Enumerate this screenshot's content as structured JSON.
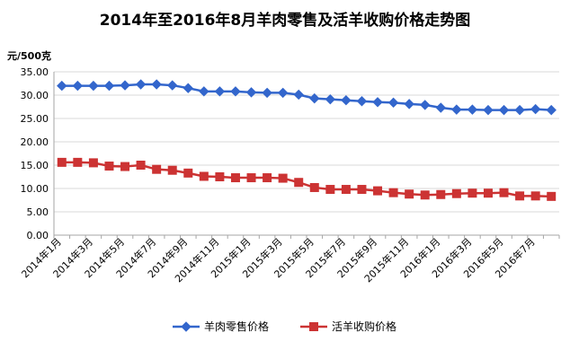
{
  "chart_data": {
    "type": "line",
    "title": "2014年至2016年8月羊肉零售及活羊收购价格走势图",
    "ylabel": "元/500克",
    "ylim": [
      0,
      35
    ],
    "yticks": [
      "0.00",
      "5.00",
      "10.00",
      "15.00",
      "20.00",
      "25.00",
      "30.00",
      "35.00"
    ],
    "grid": true,
    "legend_position": "bottom",
    "x": [
      "2014年1月",
      "2014年2月",
      "2014年3月",
      "2014年4月",
      "2014年5月",
      "2014年6月",
      "2014年7月",
      "2014年8月",
      "2014年9月",
      "2014年10月",
      "2014年11月",
      "2014年12月",
      "2015年1月",
      "2015年2月",
      "2015年3月",
      "2015年4月",
      "2015年5月",
      "2015年6月",
      "2015年7月",
      "2015年8月",
      "2015年9月",
      "2015年10月",
      "2015年11月",
      "2015年12月",
      "2016年1月",
      "2016年2月",
      "2016年3月",
      "2016年4月",
      "2016年5月",
      "2016年6月",
      "2016年7月",
      "2016年8月"
    ],
    "xtick_labels": [
      "2014年1月",
      "2014年3月",
      "2014年5月",
      "2014年7月",
      "2014年9月",
      "2014年11月",
      "2015年1月",
      "2015年3月",
      "2015年5月",
      "2015年7月",
      "2015年9月",
      "2015年11月",
      "2016年1月",
      "2016年3月",
      "2016年5月",
      "2016年7月"
    ],
    "series": [
      {
        "name": "羊肉零售价格",
        "color": "#3366CC",
        "marker": "diamond",
        "values": [
          32.0,
          32.0,
          32.0,
          32.0,
          32.1,
          32.3,
          32.3,
          32.1,
          31.5,
          30.8,
          30.8,
          30.8,
          30.6,
          30.5,
          30.5,
          30.1,
          29.3,
          29.1,
          28.9,
          28.7,
          28.5,
          28.4,
          28.1,
          27.9,
          27.3,
          26.9,
          26.9,
          26.8,
          26.8,
          26.8,
          27.0,
          26.8
        ]
      },
      {
        "name": "活羊收购价格",
        "color": "#CC3333",
        "marker": "square",
        "values": [
          15.6,
          15.6,
          15.5,
          14.8,
          14.7,
          15.0,
          14.1,
          13.9,
          13.3,
          12.6,
          12.5,
          12.3,
          12.3,
          12.3,
          12.2,
          11.3,
          10.2,
          9.8,
          9.8,
          9.8,
          9.5,
          9.1,
          8.8,
          8.6,
          8.7,
          8.9,
          9.0,
          9.0,
          9.1,
          8.4,
          8.4,
          8.3
        ]
      }
    ]
  }
}
